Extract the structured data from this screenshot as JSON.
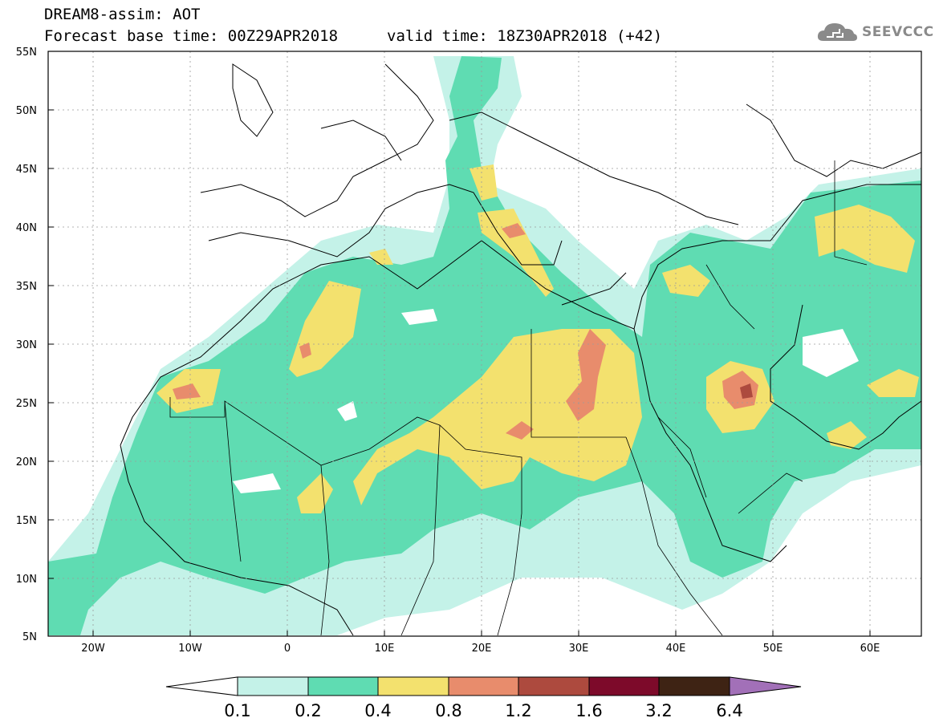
{
  "title": {
    "model_line": "DREAM8-assim: AOT",
    "base_time": "Forecast base time: 00Z29APR2018",
    "valid_time": "valid time: 18Z30APR2018 (+42)"
  },
  "logo": {
    "text": "SEEVCCC",
    "icon": "cloud-icon"
  },
  "map": {
    "lat_labels": [
      "55N",
      "50N",
      "45N",
      "40N",
      "35N",
      "30N",
      "25N",
      "20N",
      "15N",
      "10N",
      "5N"
    ],
    "lon_labels": [
      "20W",
      "10W",
      "0",
      "10E",
      "20E",
      "30E",
      "40E",
      "50E",
      "60E"
    ],
    "lon_range": [
      -25,
      65
    ],
    "lat_range": [
      5,
      55
    ]
  },
  "colorbar": {
    "levels": [
      "0.1",
      "0.2",
      "0.4",
      "0.8",
      "1.2",
      "1.6",
      "3.2",
      "6.4"
    ],
    "colors": [
      "#ffffff",
      "#c4f2e8",
      "#5fdcb2",
      "#f3e16e",
      "#e88c6c",
      "#ad4a3e",
      "#7d0a2a",
      "#3e2314",
      "#a270b8"
    ]
  }
}
